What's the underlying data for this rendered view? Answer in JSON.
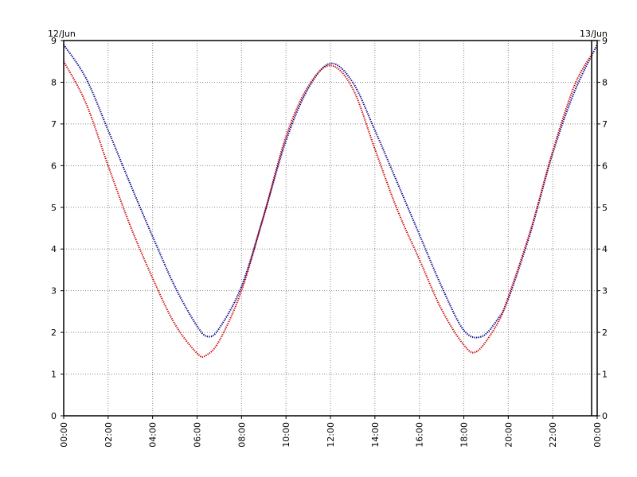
{
  "chart_data": {
    "type": "line",
    "date_labels": {
      "start": "12/Jun",
      "end": "13/Jun"
    },
    "x_tick_labels": [
      "00:00",
      "02:00",
      "04:00",
      "06:00",
      "08:00",
      "10:00",
      "12:00",
      "14:00",
      "16:00",
      "18:00",
      "20:00",
      "22:00",
      "00:00"
    ],
    "y_tick_labels": [
      "0",
      "1",
      "2",
      "3",
      "4",
      "5",
      "6",
      "7",
      "8",
      "9"
    ],
    "xlim": [
      0,
      24
    ],
    "ylim": [
      0,
      9
    ],
    "grid": true,
    "marker_line_x": 23.75,
    "series": [
      {
        "color": "#00008b",
        "x": [
          0,
          1,
          2,
          3,
          4,
          5,
          6,
          6.5,
          7,
          8,
          9,
          10,
          11,
          12,
          13,
          14,
          15,
          16,
          17,
          18,
          18.8,
          19.5,
          20,
          21,
          22,
          23,
          24
        ],
        "values": [
          8.9,
          8.1,
          6.85,
          5.55,
          4.3,
          3.1,
          2.15,
          1.9,
          2.1,
          3.1,
          4.8,
          6.6,
          7.85,
          8.45,
          8.0,
          6.85,
          5.6,
          4.35,
          3.1,
          2.05,
          1.9,
          2.3,
          2.8,
          4.4,
          6.3,
          7.8,
          8.9
        ]
      },
      {
        "color": "#cc0000",
        "x": [
          0,
          1,
          2,
          3,
          4,
          5,
          6,
          6.4,
          7,
          8,
          9,
          10,
          11,
          12,
          13,
          14,
          15,
          16,
          17,
          18,
          18.6,
          19.5,
          20,
          21,
          22,
          23,
          23.8
        ],
        "values": [
          8.5,
          7.5,
          6.0,
          4.55,
          3.3,
          2.2,
          1.5,
          1.45,
          1.8,
          3.0,
          4.8,
          6.7,
          7.9,
          8.4,
          7.85,
          6.4,
          4.95,
          3.75,
          2.55,
          1.7,
          1.55,
          2.2,
          2.85,
          4.45,
          6.35,
          7.95,
          8.7
        ]
      }
    ]
  }
}
